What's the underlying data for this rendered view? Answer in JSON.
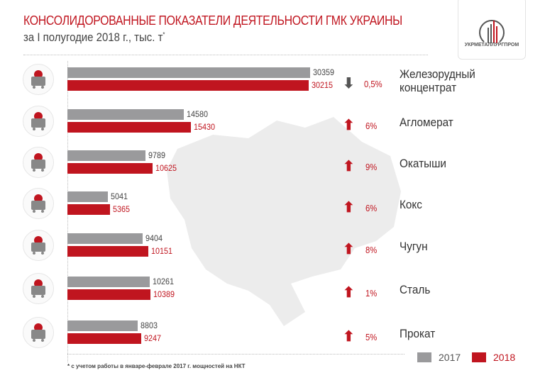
{
  "header": {
    "title": "КОНСОЛИДОРОВАННЫЕ ПОКАЗАТЕЛИ ДЕЯТЕЛЬНОСТИ ГМК УКРАИНЫ",
    "subtitle": "за I полугодие 2018 г., тыс. т",
    "subtitle_mark": "*"
  },
  "logo": {
    "text": "УКРМЕТАЛЛУРГПРОМ"
  },
  "colors": {
    "y2017": "#9a9a9c",
    "y2018": "#c0151f",
    "down": "#555555",
    "up": "#c0151f"
  },
  "chart_data": {
    "type": "bar",
    "title": "КОНСОЛИДОРОВАННЫЕ ПОКАЗАТЕЛИ ДЕЯТЕЛЬНОСТИ ГМК УКРАИНЫ",
    "categories": [
      "Железорудный концентрат",
      "Агломерат",
      "Окатыши",
      "Кокс",
      "Чугун",
      "Сталь",
      "Прокат"
    ],
    "series": [
      {
        "name": "2017",
        "values": [
          30359,
          14580,
          9789,
          5041,
          9404,
          10261,
          8803
        ]
      },
      {
        "name": "2018",
        "values": [
          30215,
          15430,
          10625,
          5365,
          10151,
          10389,
          9247
        ]
      }
    ],
    "changes": [
      {
        "direction": "down",
        "text": "0,5%"
      },
      {
        "direction": "up",
        "text": "6%"
      },
      {
        "direction": "up",
        "text": "9%"
      },
      {
        "direction": "up",
        "text": "6%"
      },
      {
        "direction": "up",
        "text": "8%"
      },
      {
        "direction": "up",
        "text": "1%"
      },
      {
        "direction": "up",
        "text": "5%"
      }
    ],
    "icons": [
      "ore-wagon-icon",
      "sinter-wagon-icon",
      "pellet-bag-icon",
      "coke-cart-icon",
      "pig-iron-icon",
      "steel-ladle-icon",
      "rolled-coil-icon"
    ],
    "legend": [
      "2017",
      "2018"
    ],
    "legend_position": "bottom-right",
    "xlim": [
      0,
      30359
    ]
  },
  "footnote": "* с учетом работы в январе-феврале 2017 г. мощностей на НКТ"
}
